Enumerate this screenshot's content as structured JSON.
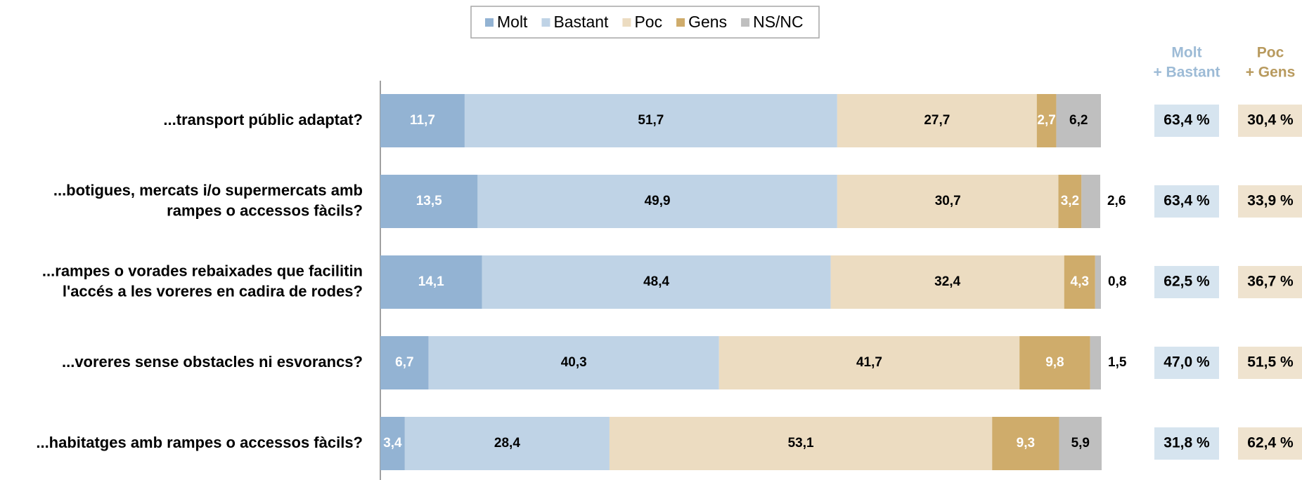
{
  "chart_data": {
    "type": "stacked-bar-horizontal",
    "categories": [
      [
        "...transport públic adaptat?"
      ],
      [
        "...botigues, mercats i/o supermercats amb",
        "rampes o accessos fàcils?"
      ],
      [
        "...rampes o vorades rebaixades que facilitin",
        "l'accés a les voreres en cadira de rodes?"
      ],
      [
        "...voreres sense obstacles ni esvorancs?"
      ],
      [
        "...habitatges amb rampes o accessos fàcils?"
      ]
    ],
    "xlim": [
      0,
      100
    ],
    "legend": "top",
    "series": [
      {
        "name": "Molt",
        "color": "#93b3d3",
        "label_color": "#ffffff",
        "values": [
          11.7,
          13.5,
          14.1,
          6.7,
          3.4
        ],
        "value_labels": [
          "11,7",
          "13,5",
          "14,1",
          "6,7",
          "3,4"
        ]
      },
      {
        "name": "Bastant",
        "color": "#bfd3e6",
        "label_color": "#000000",
        "values": [
          51.7,
          49.9,
          48.4,
          40.3,
          28.4
        ],
        "value_labels": [
          "51,7",
          "49,9",
          "48,4",
          "40,3",
          "28,4"
        ]
      },
      {
        "name": "Poc",
        "color": "#ecdcc1",
        "label_color": "#000000",
        "values": [
          27.7,
          30.7,
          32.4,
          41.7,
          53.1
        ],
        "value_labels": [
          "27,7",
          "30,7",
          "32,4",
          "41,7",
          "53,1"
        ]
      },
      {
        "name": "Gens",
        "color": "#cfac6b",
        "label_color": "#ffffff",
        "values": [
          2.7,
          3.2,
          4.3,
          9.8,
          9.3
        ],
        "value_labels": [
          "2,7",
          "3,2",
          "4,3",
          "9,8",
          "9,3"
        ]
      },
      {
        "name": "NS/NC",
        "color": "#bfbfbf",
        "label_color": "#000000",
        "values": [
          6.2,
          2.6,
          0.8,
          1.5,
          5.9
        ],
        "value_labels": [
          "6,2",
          "2,6",
          "0,8",
          "1,5",
          "5,9"
        ]
      }
    ],
    "summaries": [
      {
        "title": [
          "Molt",
          "+ Bastant"
        ],
        "color": "#9dbbd6",
        "box_color": "#d6e4ef",
        "values": [
          63.4,
          63.4,
          62.5,
          47.0,
          31.8
        ],
        "value_labels": [
          "63,4 %",
          "63,4 %",
          "62,5 %",
          "47,0 %",
          "31,8 %"
        ]
      },
      {
        "title": [
          "Poc",
          "+ Gens"
        ],
        "color": "#b89a5e",
        "box_color": "#efe3cf",
        "values": [
          30.4,
          33.9,
          36.7,
          51.5,
          62.4
        ],
        "value_labels": [
          "30,4 %",
          "33,9 %",
          "36,7 %",
          "51,5 %",
          "62,4 %"
        ]
      }
    ]
  }
}
